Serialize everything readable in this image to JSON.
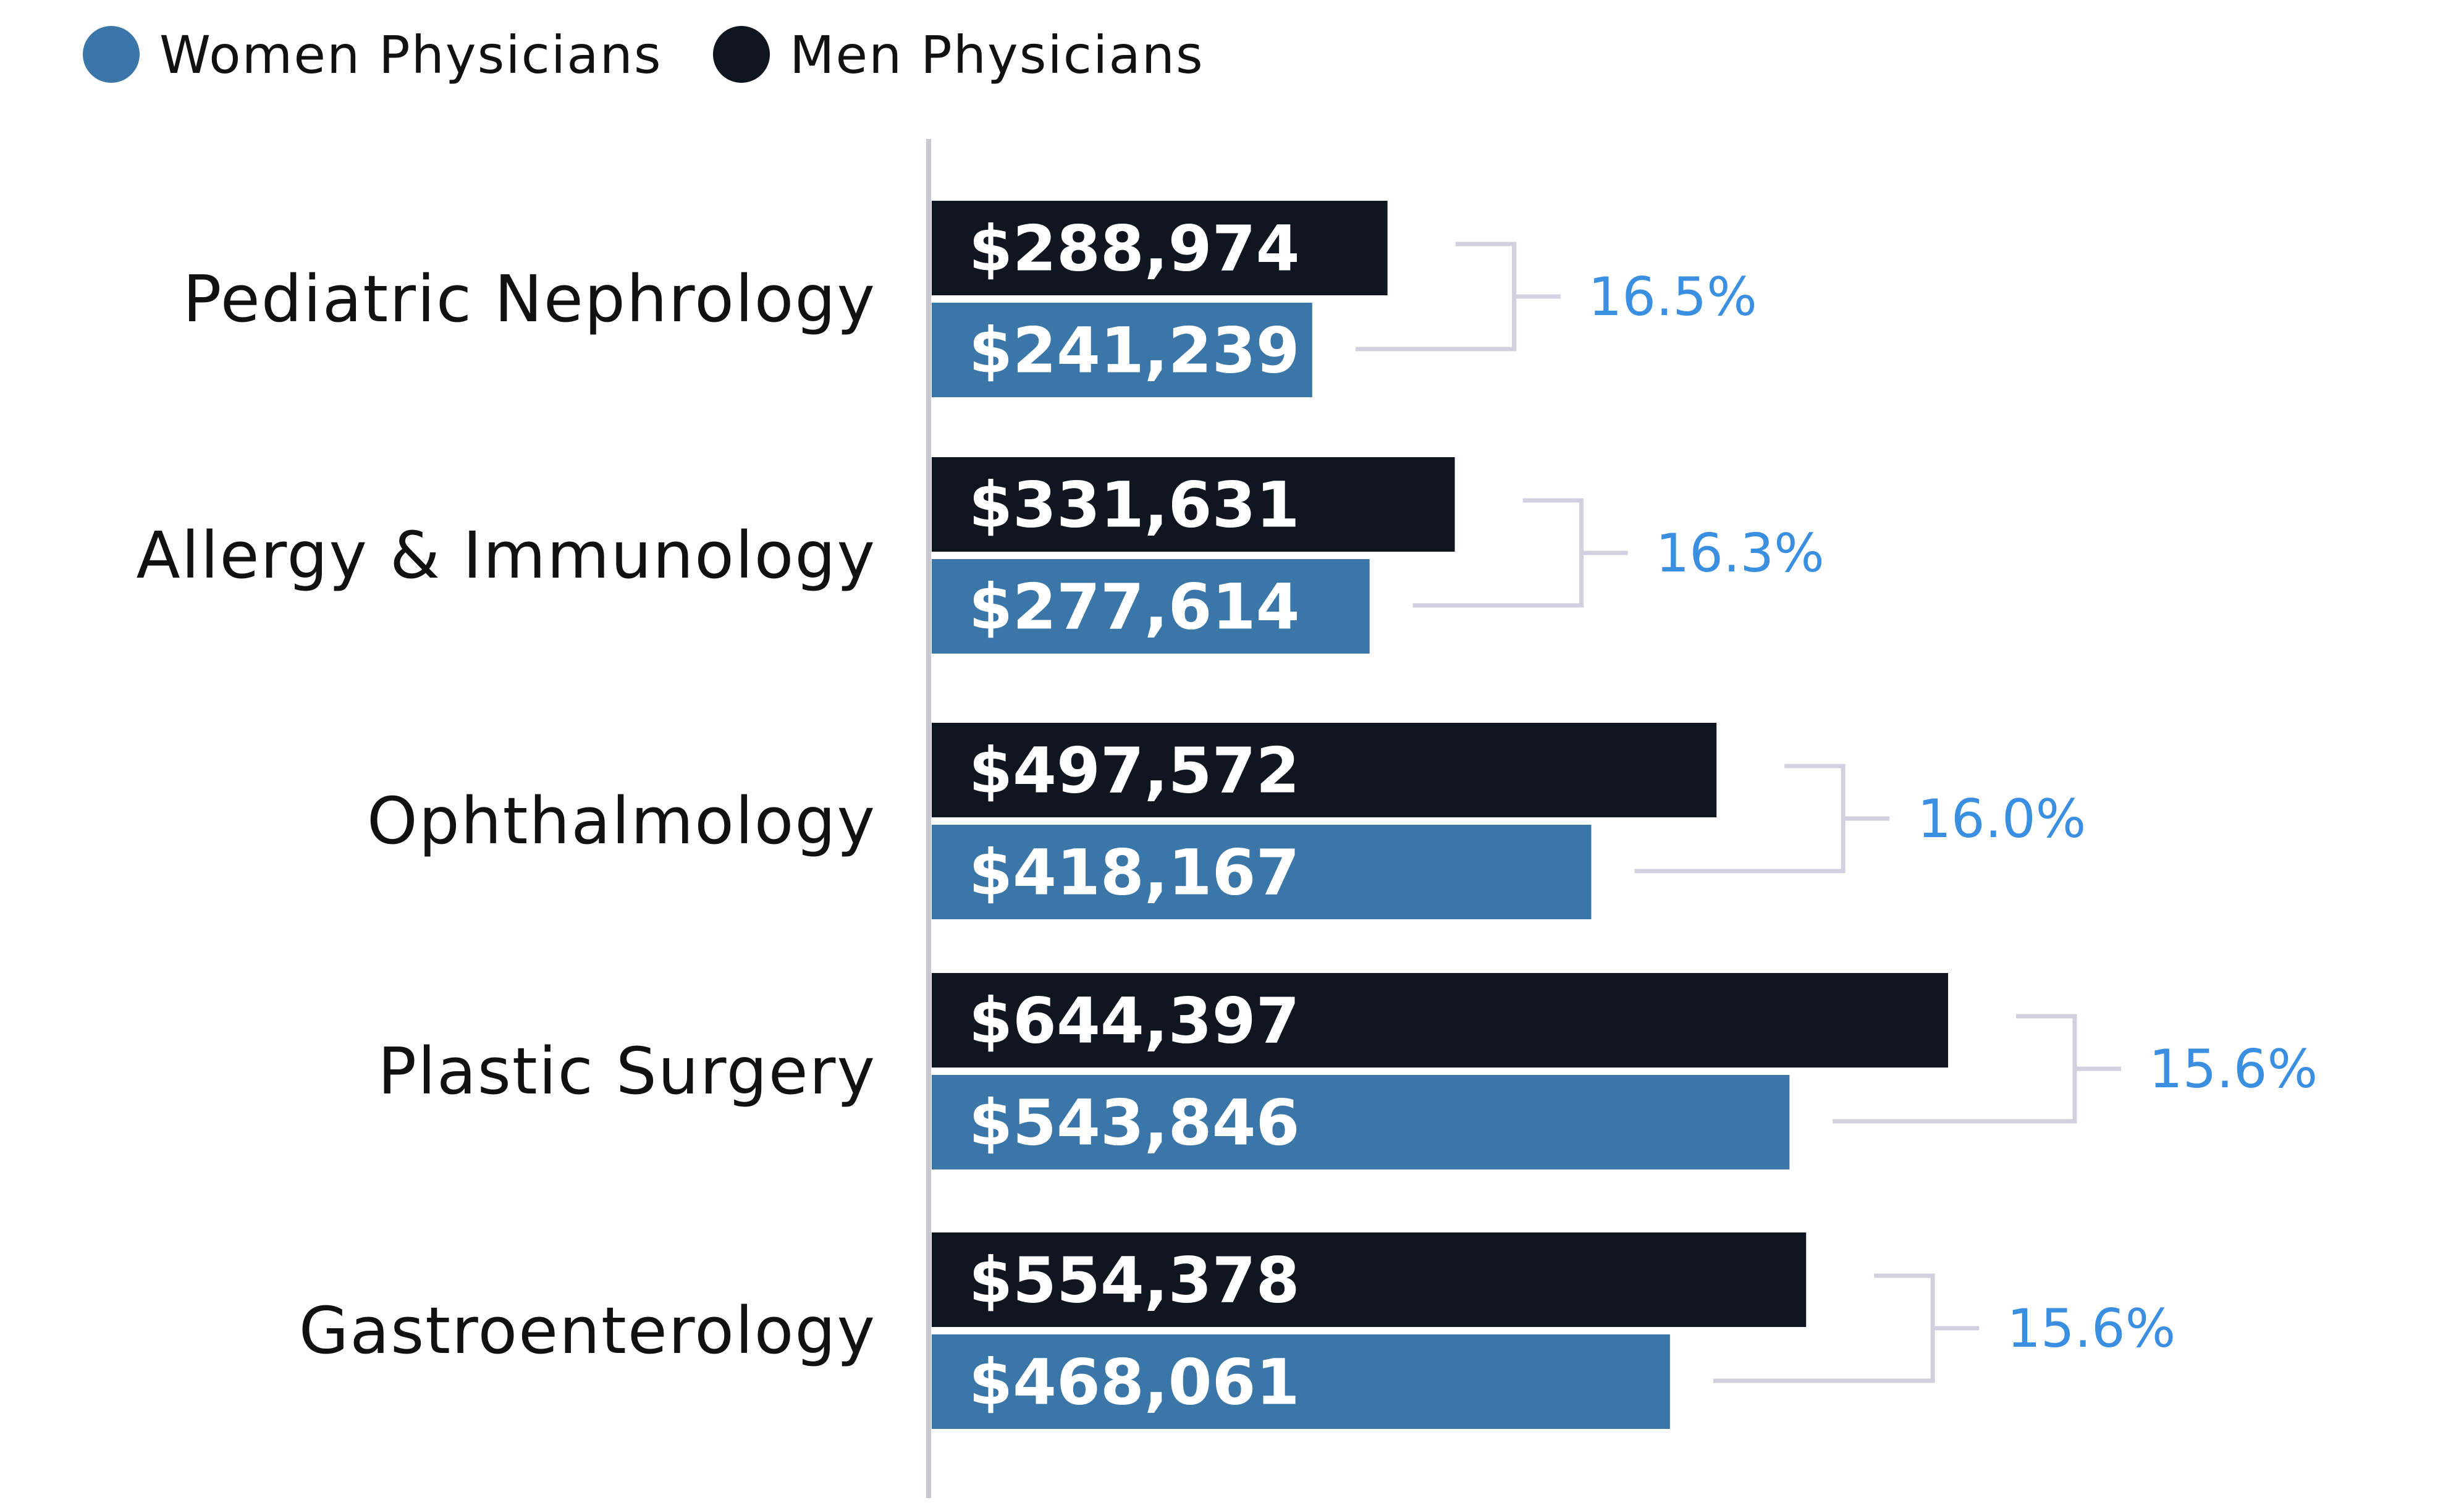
{
  "colors": {
    "women": "#3a76a8",
    "men": "#10161f",
    "axis": "#c8c8d0",
    "bracket": "#d2d0de",
    "gap_text": "#3b8fe0",
    "label_text": "#111111"
  },
  "legend": {
    "women_label": "Women Physicians",
    "men_label": "Men Physicians"
  },
  "chart_data": {
    "type": "bar",
    "orientation": "horizontal",
    "grouped": true,
    "categories": [
      "Pediatric Nephrology",
      "Allergy & Immunology",
      "Ophthalmology",
      "Plastic Surgery",
      "Gastroenterology"
    ],
    "series": [
      {
        "name": "Men Physicians",
        "values": [
          288974,
          331631,
          497572,
          644397,
          554378
        ],
        "labels": [
          "$288,974",
          "$331,631",
          "$497,572",
          "$644,397",
          "$554,378"
        ]
      },
      {
        "name": "Women Physicians",
        "values": [
          241239,
          277614,
          418167,
          543846,
          468061
        ],
        "labels": [
          "$241,239",
          "$277,614",
          "$418,167",
          "$543,846",
          "$468,061"
        ]
      }
    ],
    "gap_labels": [
      "16.5%",
      "16.3%",
      "16.0%",
      "15.6%",
      "15.6%"
    ],
    "xlim": [
      0,
      700000
    ],
    "legend_position": "top-left",
    "grid": false,
    "title": "",
    "xlabel": "",
    "ylabel": ""
  }
}
